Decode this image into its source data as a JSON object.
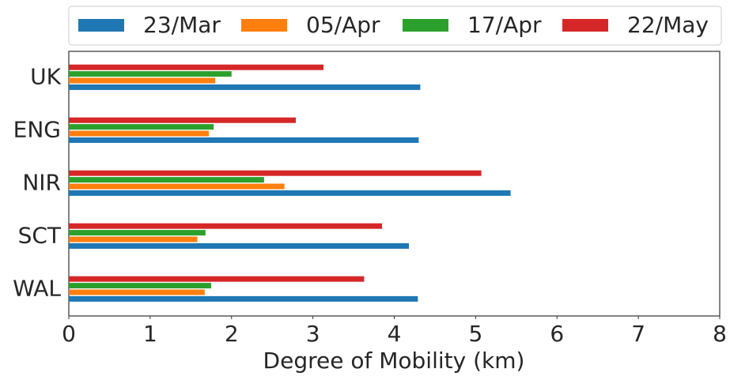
{
  "chart_data": {
    "type": "barh",
    "categories": [
      "UK",
      "ENG",
      "NIR",
      "SCT",
      "WAL"
    ],
    "series": [
      {
        "name": "23/Mar",
        "color": "#1f77b4",
        "values": [
          4.32,
          4.3,
          5.43,
          4.18,
          4.29
        ]
      },
      {
        "name": "05/Apr",
        "color": "#ff7f0e",
        "values": [
          1.8,
          1.72,
          2.65,
          1.58,
          1.67
        ]
      },
      {
        "name": "17/Apr",
        "color": "#2ca02c",
        "values": [
          2.0,
          1.78,
          2.4,
          1.68,
          1.75
        ]
      },
      {
        "name": "22/May",
        "color": "#d62728",
        "values": [
          3.13,
          2.79,
          5.07,
          3.85,
          3.63
        ]
      }
    ],
    "xlabel": "Degree of Mobility (km)",
    "xlim": [
      0,
      8
    ],
    "xticks": [
      0,
      1,
      2,
      3,
      4,
      5,
      6,
      7,
      8
    ],
    "legend": "top"
  }
}
